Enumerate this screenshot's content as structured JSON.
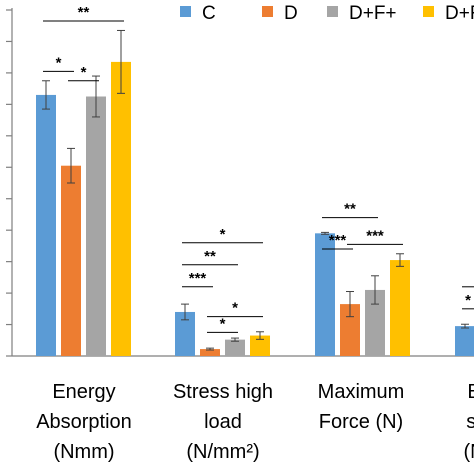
{
  "chart_data": {
    "type": "bar",
    "legend": {
      "placement": "top",
      "entries": [
        "C",
        "D",
        "D+F+",
        "D+F-"
      ]
    },
    "series_colors": {
      "C": "#5b9bd5",
      "D": "#ed7d31",
      "D+F+": "#a5a5a5",
      "D+F-": "#ffc000"
    },
    "categories": [
      {
        "lines": [
          "Energy",
          "Absorption",
          "(Nmm)"
        ]
      },
      {
        "lines": [
          "Stress high",
          "load",
          "(N/mm²)"
        ]
      },
      {
        "lines": [
          "Maximum",
          "Force (N)"
        ]
      },
      {
        "lines": [
          "B",
          "st",
          "(N"
        ]
      }
    ],
    "ylim": [
      0,
      11
    ],
    "gridlines": false,
    "series": [
      {
        "name": "C",
        "values": [
          8.3,
          1.4,
          3.9,
          0.95
        ],
        "errors": [
          0.45,
          0.25,
          0.03,
          0.06
        ]
      },
      {
        "name": "D",
        "values": [
          6.05,
          0.22,
          1.65,
          null
        ],
        "errors": [
          0.55,
          0.03,
          0.4,
          null
        ]
      },
      {
        "name": "D+F+",
        "values": [
          8.25,
          0.52,
          2.1,
          null
        ],
        "errors": [
          0.65,
          0.05,
          0.45,
          null
        ]
      },
      {
        "name": "D+F-",
        "values": [
          9.35,
          0.65,
          3.05,
          null
        ],
        "errors": [
          1.0,
          0.12,
          0.2,
          null
        ]
      }
    ],
    "significance": [
      {
        "category": 0,
        "from": "C",
        "to": "D",
        "level": 9.05,
        "label": "*"
      },
      {
        "category": 0,
        "from": "D",
        "to": "D+F+",
        "level": 8.75,
        "label": "*"
      },
      {
        "category": 0,
        "from": "C",
        "to": "D+F-",
        "level": 10.65,
        "label": "**"
      },
      {
        "category": 1,
        "from": "C",
        "to": "D+F-",
        "level": 3.6,
        "label": "*"
      },
      {
        "category": 1,
        "from": "C",
        "to": "D+F+",
        "level": 2.9,
        "label": "**"
      },
      {
        "category": 1,
        "from": "C",
        "to": "D",
        "level": 2.2,
        "label": "***"
      },
      {
        "category": 1,
        "from": "D",
        "to": "D+F-",
        "level": 1.25,
        "label": "*"
      },
      {
        "category": 1,
        "from": "D",
        "to": "D+F+",
        "level": 0.75,
        "label": "*"
      },
      {
        "category": 2,
        "from": "C",
        "to": "D+F+",
        "level": 4.4,
        "label": "**"
      },
      {
        "category": 2,
        "from": "C",
        "to": "D",
        "level": 3.4,
        "label": "***"
      },
      {
        "category": 2,
        "from": "D",
        "to": "D+F-",
        "level": 3.55,
        "label": "***"
      },
      {
        "category": 3,
        "from": "C",
        "to": "D",
        "level": 1.5,
        "label": "*"
      },
      {
        "category": 3,
        "from": "C",
        "to": "D+F-",
        "level": 2.2,
        "label": ""
      }
    ]
  }
}
